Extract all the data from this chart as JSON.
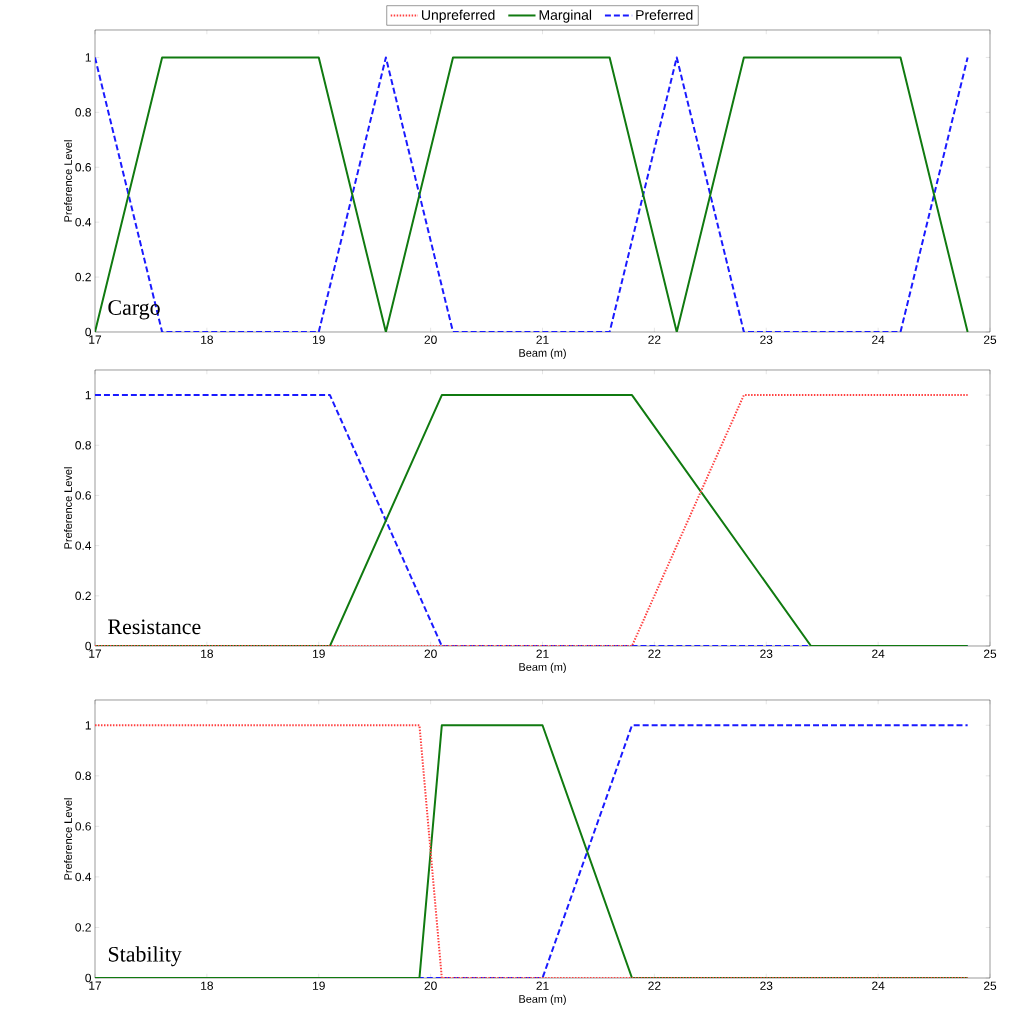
{
  "chart_data": [
    {
      "type": "line",
      "xlabel": "Beam (m)",
      "ylabel": "Preference Level",
      "annotations": [
        "Cargo"
      ],
      "xlim": [
        17,
        25
      ],
      "ylim": [
        0,
        1.1
      ],
      "xticks": [
        17,
        18,
        19,
        20,
        21,
        22,
        23,
        24,
        25
      ],
      "yticks": [
        0,
        0.2,
        0.4,
        0.6,
        0.8,
        1
      ],
      "grid": false,
      "legend": "top",
      "series": [
        {
          "name": "Unpreferred",
          "color": "#ff4040",
          "line_style": "dotted"
        },
        {
          "name": "Marginal",
          "color": "#107a10",
          "line_style": "solid",
          "x": [
            17,
            17.6,
            19,
            19.6,
            20.2,
            21.6,
            22.2,
            22.8,
            24.2,
            24.8
          ],
          "values": [
            0,
            1,
            1,
            0,
            1,
            1,
            0,
            1,
            1,
            0
          ]
        },
        {
          "name": "Preferred",
          "color": "#1a1aff",
          "line_style": "dashed",
          "x": [
            17,
            17.6,
            19,
            19.6,
            20.2,
            21.6,
            22.2,
            22.8,
            24.2,
            24.8
          ],
          "values": [
            1,
            0,
            0,
            1,
            0,
            0,
            1,
            0,
            0,
            1
          ]
        }
      ]
    },
    {
      "type": "line",
      "xlabel": "Beam (m)",
      "ylabel": "Preference Level",
      "annotations": [
        "Resistance"
      ],
      "xlim": [
        17,
        25
      ],
      "ylim": [
        0,
        1.1
      ],
      "xticks": [
        17,
        18,
        19,
        20,
        21,
        22,
        23,
        24,
        25
      ],
      "yticks": [
        0,
        0.2,
        0.4,
        0.6,
        0.8,
        1
      ],
      "grid": false,
      "series": [
        {
          "color": "#ff4040",
          "line_style": "dotted",
          "x": [
            17,
            21.8,
            22.8,
            24.8
          ],
          "values": [
            0,
            0,
            1,
            1
          ]
        },
        {
          "color": "#107a10",
          "line_style": "solid",
          "x": [
            17,
            19.1,
            20.1,
            21.8,
            23.4,
            24.8
          ],
          "values": [
            0,
            0,
            1,
            1,
            0,
            0
          ]
        },
        {
          "color": "#1a1aff",
          "line_style": "dashed",
          "x": [
            17,
            19.1,
            20.1,
            24.8
          ],
          "values": [
            1,
            1,
            0,
            0
          ]
        }
      ]
    },
    {
      "type": "line",
      "xlabel": "Beam (m)",
      "ylabel": "Preference Level",
      "annotations": [
        "Stability"
      ],
      "xlim": [
        17,
        25
      ],
      "ylim": [
        0,
        1.1
      ],
      "xticks": [
        17,
        18,
        19,
        20,
        21,
        22,
        23,
        24,
        25
      ],
      "yticks": [
        0,
        0.2,
        0.4,
        0.6,
        0.8,
        1
      ],
      "grid": false,
      "series": [
        {
          "color": "#ff4040",
          "line_style": "dotted",
          "x": [
            17,
            19.9,
            20.1,
            24.8
          ],
          "values": [
            1,
            1,
            0,
            0
          ]
        },
        {
          "color": "#107a10",
          "line_style": "solid",
          "x": [
            17,
            19.9,
            20.1,
            21,
            21.8,
            24.8
          ],
          "values": [
            0,
            0,
            1,
            1,
            0,
            0
          ]
        },
        {
          "color": "#1a1aff",
          "line_style": "dashed",
          "x": [
            17,
            21,
            21.8,
            24.8
          ],
          "values": [
            0,
            0,
            1,
            1
          ]
        }
      ]
    }
  ]
}
